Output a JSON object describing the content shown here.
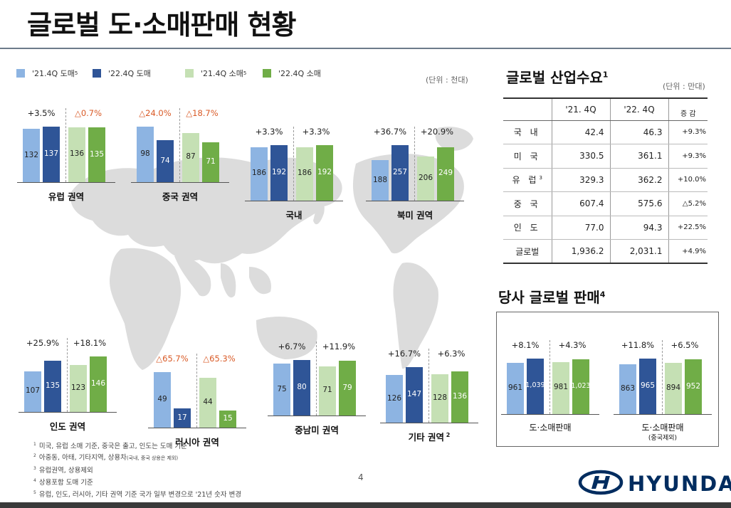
{
  "header": {
    "title": "글로벌 도·소매판매 현황"
  },
  "legend": {
    "items": [
      {
        "label": "'21.4Q 도매",
        "sup": "5",
        "color": "#8db4e2"
      },
      {
        "label": "'22.4Q 도매",
        "sup": "",
        "color": "#2f5597"
      },
      {
        "label": "'21.4Q 소매",
        "sup": "5",
        "color": "#c5e0b4"
      },
      {
        "label": "'22.4Q 소매",
        "sup": "",
        "color": "#70ad47"
      }
    ]
  },
  "unit_left": "(단위 : 천대)",
  "colors": {
    "wholesale_21": "#8db4e2",
    "wholesale_22": "#2f5597",
    "retail_21": "#c5e0b4",
    "retail_22": "#70ad47",
    "negative": "#d95a26",
    "logo": "#002c5f"
  },
  "chart_data": [
    {
      "type": "bar",
      "title": "유럽 권역",
      "title_sup": "",
      "series_names": [
        "'21.4Q 도매",
        "'22.4Q 도매",
        "'21.4Q 소매",
        "'22.4Q 소매"
      ],
      "values": [
        132,
        137,
        136,
        135
      ],
      "changes": [
        "+3.5%",
        "△0.7%"
      ],
      "change_negative": [
        false,
        true
      ]
    },
    {
      "type": "bar",
      "title": "중국 권역",
      "title_sup": "",
      "series_names": [
        "'21.4Q 도매",
        "'22.4Q 도매",
        "'21.4Q 소매",
        "'22.4Q 소매"
      ],
      "values": [
        98,
        74,
        87,
        71
      ],
      "changes": [
        "△24.0%",
        "△18.7%"
      ],
      "change_negative": [
        true,
        true
      ]
    },
    {
      "type": "bar",
      "title": "국내",
      "title_sup": "",
      "series_names": [
        "'21.4Q 도매",
        "'22.4Q 도매",
        "'21.4Q 소매",
        "'22.4Q 소매"
      ],
      "values": [
        186,
        192,
        186,
        192
      ],
      "changes": [
        "+3.3%",
        "+3.3%"
      ],
      "change_negative": [
        false,
        false
      ]
    },
    {
      "type": "bar",
      "title": "북미 권역",
      "title_sup": "",
      "series_names": [
        "'21.4Q 도매",
        "'22.4Q 도매",
        "'21.4Q 소매",
        "'22.4Q 소매"
      ],
      "values": [
        188,
        257,
        206,
        249
      ],
      "changes": [
        "+36.7%",
        "+20.9%"
      ],
      "change_negative": [
        false,
        false
      ]
    },
    {
      "type": "bar",
      "title": "인도 권역",
      "title_sup": "",
      "series_names": [
        "'21.4Q 도매",
        "'22.4Q 도매",
        "'21.4Q 소매",
        "'22.4Q 소매"
      ],
      "values": [
        107,
        135,
        123,
        146
      ],
      "changes": [
        "+25.9%",
        "+18.1%"
      ],
      "change_negative": [
        false,
        false
      ]
    },
    {
      "type": "bar",
      "title": "러시아 권역",
      "title_sup": "",
      "series_names": [
        "'21.4Q 도매",
        "'22.4Q 도매",
        "'21.4Q 소매",
        "'22.4Q 소매"
      ],
      "values": [
        49,
        17,
        44,
        15
      ],
      "changes": [
        "△65.7%",
        "△65.3%"
      ],
      "change_negative": [
        true,
        true
      ]
    },
    {
      "type": "bar",
      "title": "중남미 권역",
      "title_sup": "",
      "series_names": [
        "'21.4Q 도매",
        "'22.4Q 도매",
        "'21.4Q 소매",
        "'22.4Q 소매"
      ],
      "values": [
        75,
        80,
        71,
        79
      ],
      "changes": [
        "+6.7%",
        "+11.9%"
      ],
      "change_negative": [
        false,
        false
      ]
    },
    {
      "type": "bar",
      "title": "기타 권역",
      "title_sup": "2",
      "series_names": [
        "'21.4Q 도매",
        "'22.4Q 도매",
        "'21.4Q 소매",
        "'22.4Q 소매"
      ],
      "values": [
        126,
        147,
        128,
        136
      ],
      "changes": [
        "+16.7%",
        "+6.3%"
      ],
      "change_negative": [
        false,
        false
      ]
    },
    {
      "type": "bar",
      "title": "도·소매판매",
      "subtitle": "",
      "series_names": [
        "'21.4Q 도매",
        "'22.4Q 도매",
        "'21.4Q 소매",
        "'22.4Q 소매"
      ],
      "values": [
        961,
        1039,
        981,
        1023
      ],
      "value_labels": [
        "961",
        "1,039",
        "981",
        "1,023"
      ],
      "changes": [
        "+8.1%",
        "+4.3%"
      ],
      "change_negative": [
        false,
        false
      ]
    },
    {
      "type": "bar",
      "title": "도·소매판매",
      "subtitle": "(중국제외)",
      "series_names": [
        "'21.4Q 도매",
        "'22.4Q 도매",
        "'21.4Q 소매",
        "'22.4Q 소매"
      ],
      "values": [
        863,
        965,
        894,
        952
      ],
      "value_labels": [
        "863",
        "965",
        "894",
        "952"
      ],
      "changes": [
        "+11.8%",
        "+6.5%"
      ],
      "change_negative": [
        false,
        false
      ]
    }
  ],
  "industry": {
    "title": "글로벌 산업수요",
    "title_sup": "1",
    "unit": "(단위 : 만대)",
    "headers": [
      "",
      "'21. 4Q",
      "'22. 4Q",
      "증 감"
    ],
    "rows": [
      {
        "name": "국 내",
        "sup": "",
        "q21": "42.4",
        "q22": "46.3",
        "chg": "+9.3%"
      },
      {
        "name": "미 국",
        "sup": "",
        "q21": "330.5",
        "q22": "361.1",
        "chg": "+9.3%"
      },
      {
        "name": "유 럽",
        "sup": "3",
        "q21": "329.3",
        "q22": "362.2",
        "chg": "+10.0%"
      },
      {
        "name": "중 국",
        "sup": "",
        "q21": "607.4",
        "q22": "575.6",
        "chg": "△5.2%"
      },
      {
        "name": "인 도",
        "sup": "",
        "q21": "77.0",
        "q22": "94.3",
        "chg": "+22.5%"
      },
      {
        "name": "글로벌",
        "sup": "",
        "q21": "1,936.2",
        "q22": "2,031.1",
        "chg": "+4.9%"
      }
    ]
  },
  "company": {
    "title": "당사 글로벌 판매",
    "title_sup": "4"
  },
  "footnotes": [
    {
      "num": "1",
      "text": "미국, 유럽 소매 기준, 중국은 출고, 인도는 도매 기준",
      "small": ""
    },
    {
      "num": "2",
      "text": "아중동, 아태, 기타지역, 상용차",
      "small": "(국내, 중국 상용은 제외)"
    },
    {
      "num": "3",
      "text": "유럽권역, 상용제외",
      "small": ""
    },
    {
      "num": "4",
      "text": "상용포함 도매 기준",
      "small": ""
    },
    {
      "num": "5",
      "text": "유럽, 인도, 러시아, 기타 권역 기준 국가 일부 변경으로 '21년 숫자 변경",
      "small": ""
    }
  ],
  "page_number": "4",
  "logo": {
    "text": "HYUNDAI",
    "icon": "hyundai-logo-icon"
  }
}
